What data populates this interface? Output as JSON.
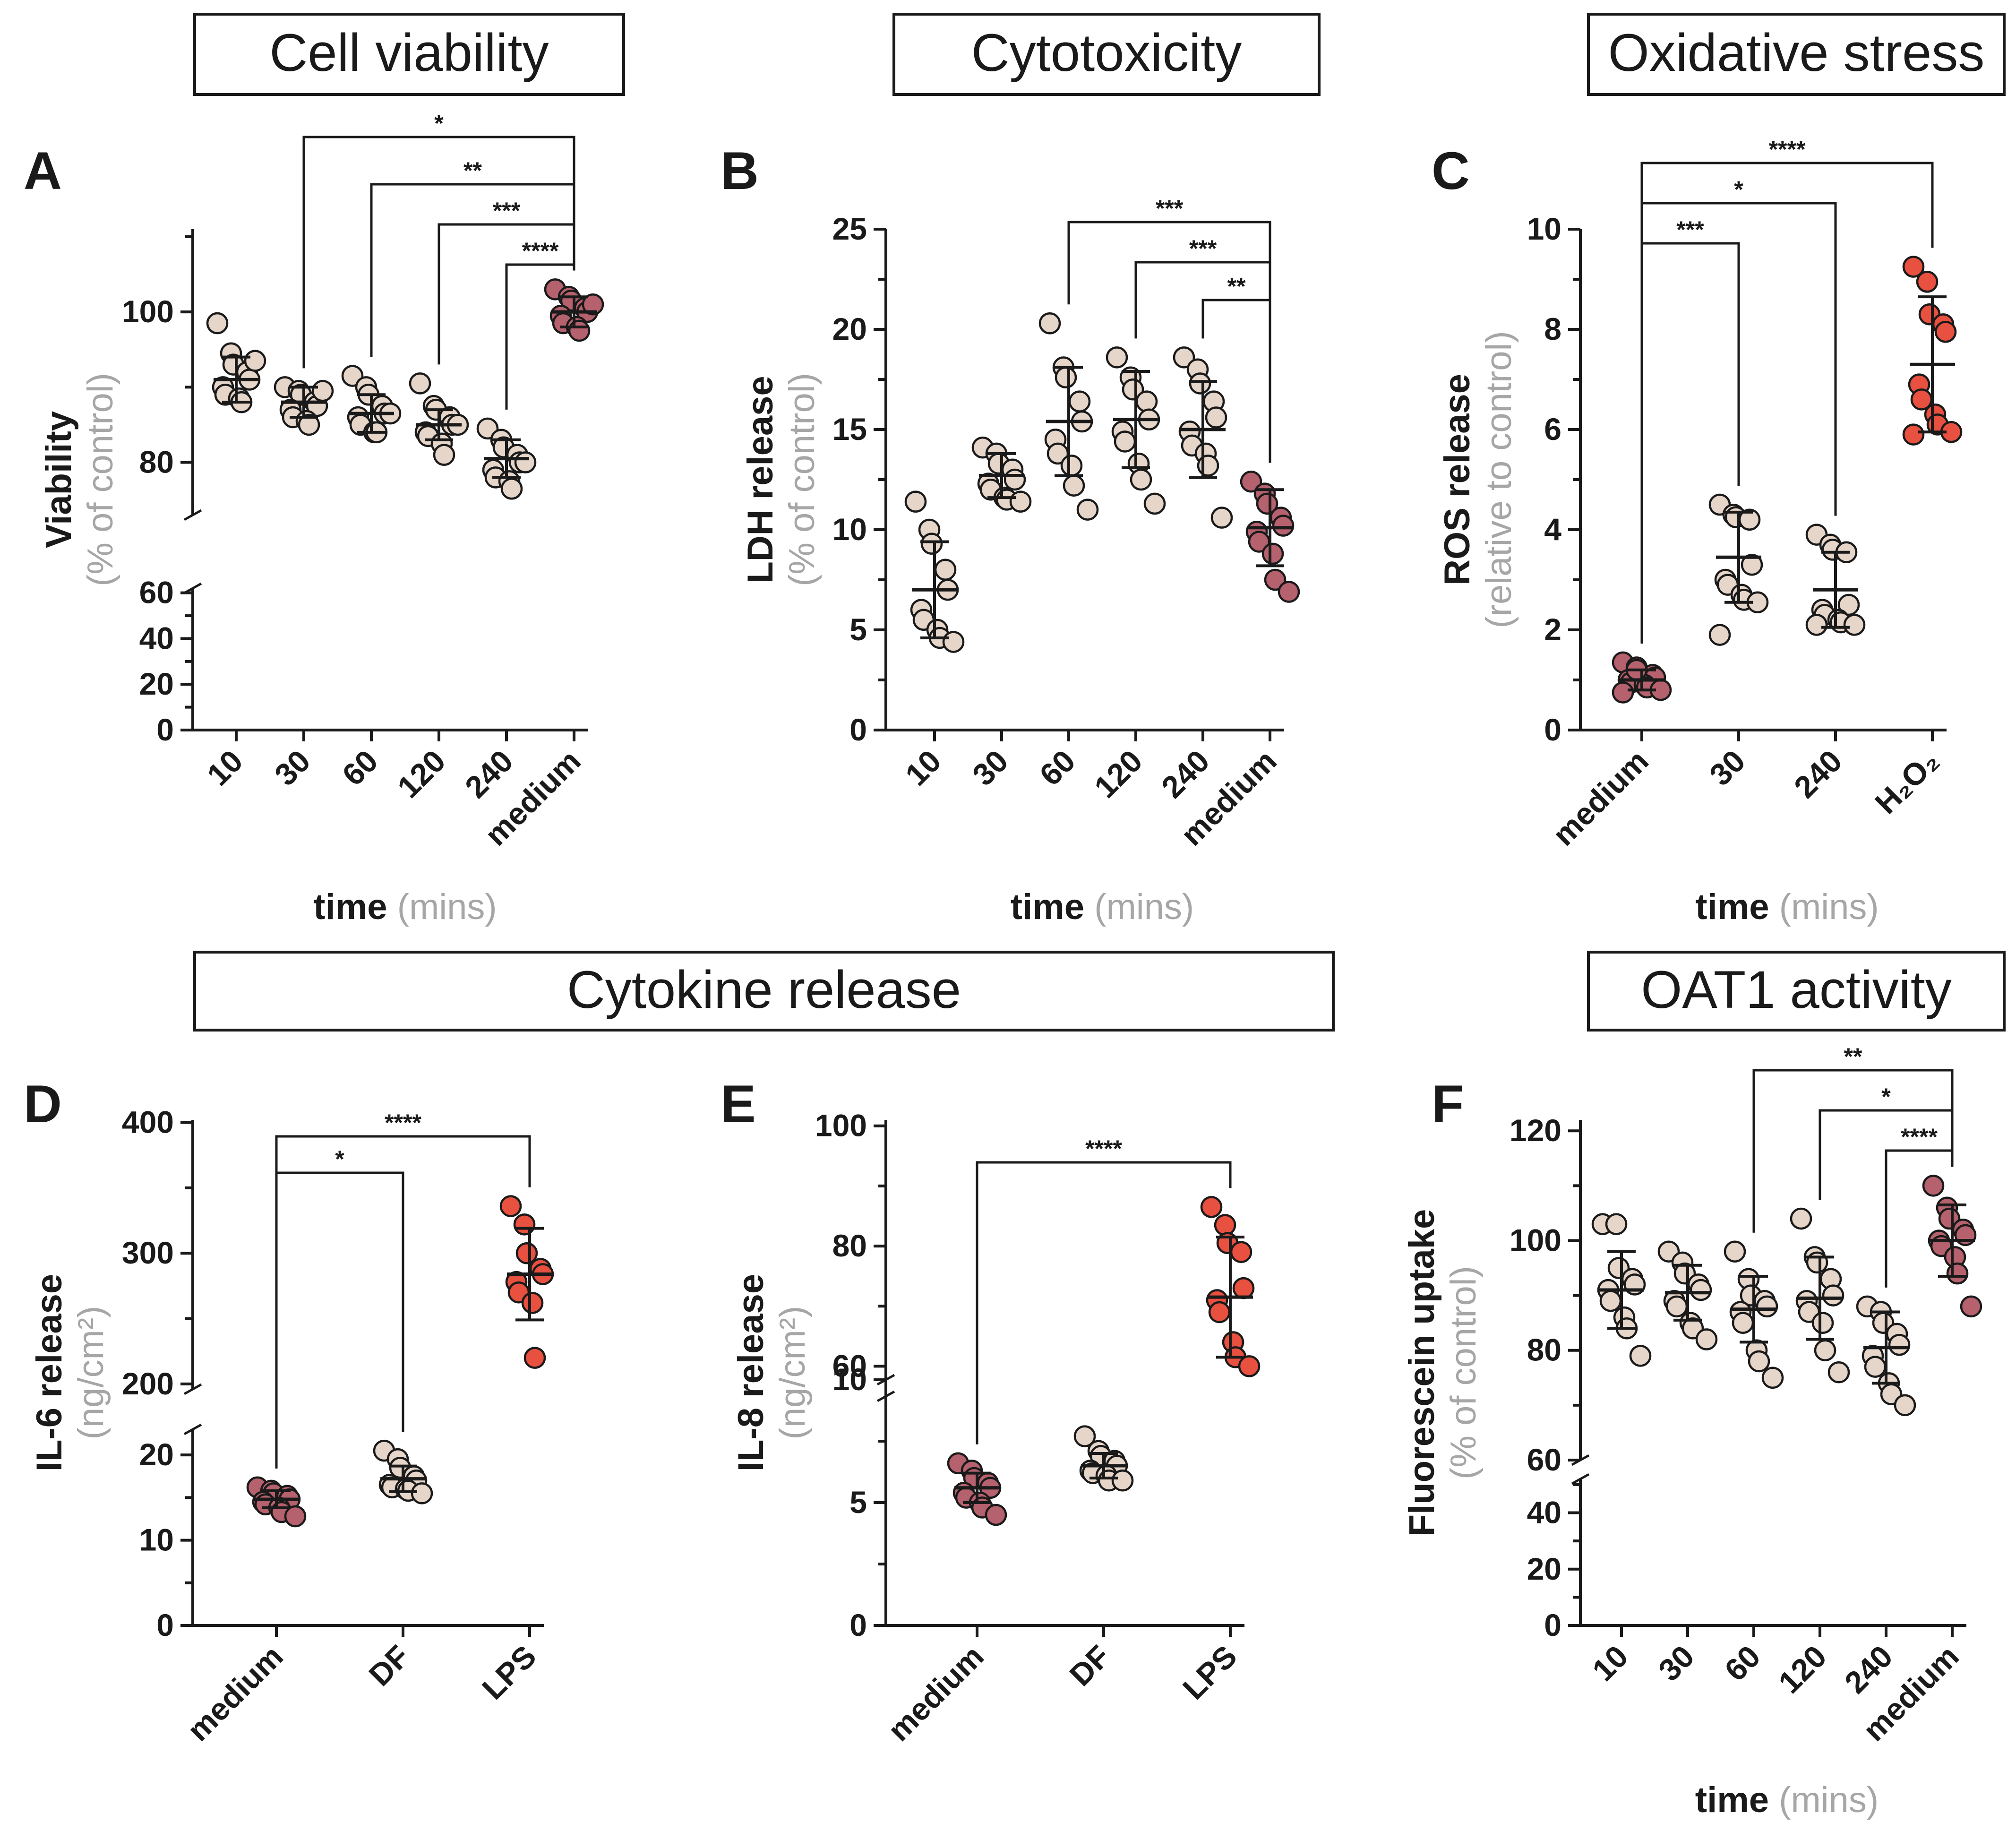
{
  "headers": {
    "cell_viability": "Cell viability",
    "cytotoxicity": "Cytotoxicity",
    "oxidative_stress": "Oxidative stress",
    "cytokine_release": "Cytokine release",
    "oat1_activity": "OAT1 activity"
  },
  "colors": {
    "light": "#e6d5c9",
    "medium": "#b5616e",
    "positive": "#e8503f",
    "axis": "#1a1a1a",
    "gray_text": "#a6a6a6"
  },
  "chart_data": [
    {
      "id": "A",
      "type": "scatter",
      "letter": "A",
      "ylabel_main": "Viability",
      "ylabel_sub": "(% of control)",
      "xlabel_main": "time",
      "xlabel_sub": "(mins)",
      "categories": [
        "10",
        "30",
        "60",
        "120",
        "240",
        "medium"
      ],
      "colors": [
        "light",
        "light",
        "light",
        "light",
        "light",
        "medium"
      ],
      "means": [
        91,
        88,
        86.5,
        85,
        80.5,
        100
      ],
      "sd": [
        3,
        2,
        2.5,
        2,
        2.5,
        2
      ],
      "points": [
        [
          98.5,
          94.5,
          93,
          92,
          91,
          90,
          89,
          88.5,
          88,
          93.5
        ],
        [
          90,
          89.5,
          89,
          88,
          87.5,
          87,
          86,
          85.5,
          85,
          89.5
        ],
        [
          91.5,
          90,
          89,
          87.5,
          86.5,
          86,
          85,
          84,
          84,
          86.5
        ],
        [
          90.5,
          87.5,
          87,
          86,
          85,
          84,
          83.5,
          82.5,
          81,
          85
        ],
        [
          84.5,
          83,
          82,
          81,
          80,
          79,
          78,
          77.5,
          76.5,
          80
        ],
        [
          103,
          102,
          101.5,
          100.5,
          100,
          99.5,
          98.5,
          98,
          97.5,
          101
        ]
      ],
      "y_axis": {
        "upper": {
          "min": 73,
          "max": 111,
          "ticks": [
            80,
            100
          ]
        },
        "lower": {
          "min": 0,
          "max": 62,
          "ticks": [
            0,
            20,
            40,
            60
          ]
        }
      },
      "comparisons": [
        {
          "from": "30",
          "to": "medium",
          "label": "*"
        },
        {
          "from": "60",
          "to": "medium",
          "label": "**"
        },
        {
          "from": "120",
          "to": "medium",
          "label": "***"
        },
        {
          "from": "240",
          "to": "medium",
          "label": "****"
        }
      ]
    },
    {
      "id": "B",
      "type": "scatter",
      "letter": "B",
      "ylabel_main": "LDH release",
      "ylabel_sub": "(% of control)",
      "xlabel_main": "time",
      "xlabel_sub": "(mins)",
      "categories": [
        "10",
        "30",
        "60",
        "120",
        "240",
        "medium"
      ],
      "colors": [
        "light",
        "light",
        "light",
        "light",
        "light",
        "medium"
      ],
      "means": [
        7,
        12.7,
        15.4,
        15.5,
        15,
        10.1
      ],
      "sd": [
        2.4,
        1.1,
        2.7,
        2.4,
        2.4,
        1.9
      ],
      "points": [
        [
          11.4,
          10,
          9.3,
          8,
          7,
          6,
          5.5,
          5,
          4.6,
          4.4
        ],
        [
          14.1,
          13.8,
          13.3,
          13,
          12.5,
          12.3,
          12,
          11.6,
          11.5,
          11.4
        ],
        [
          20.3,
          18.1,
          17.6,
          16.4,
          15.4,
          14.5,
          13.8,
          13.2,
          12.2,
          11
        ],
        [
          18.6,
          17.6,
          17,
          16.4,
          15.5,
          14.9,
          14.4,
          13.3,
          12.5,
          11.3
        ],
        [
          18.6,
          18,
          17.3,
          16.4,
          15.6,
          14.9,
          14.2,
          13.8,
          13.2,
          10.6
        ],
        [
          12.4,
          11.8,
          11.3,
          10.6,
          10.2,
          9.9,
          9.4,
          8.8,
          7.5,
          6.9
        ]
      ],
      "y_axis": {
        "min": 0,
        "max": 25,
        "ticks": [
          0,
          5,
          10,
          15,
          20,
          25
        ]
      },
      "comparisons": [
        {
          "from": "60",
          "to": "medium",
          "label": "***"
        },
        {
          "from": "120",
          "to": "medium",
          "label": "***"
        },
        {
          "from": "240",
          "to": "medium",
          "label": "**"
        }
      ]
    },
    {
      "id": "C",
      "type": "scatter",
      "letter": "C",
      "ylabel_main": "ROS release",
      "ylabel_sub": "(relative to control)",
      "xlabel_main": "time",
      "xlabel_sub": "(mins)",
      "categories": [
        "medium",
        "30",
        "240",
        "H₂O₂"
      ],
      "colors": [
        "medium",
        "light",
        "light",
        "positive"
      ],
      "means": [
        1,
        3.45,
        2.8,
        7.3
      ],
      "sd": [
        0.2,
        0.9,
        0.75,
        1.35
      ],
      "points": [
        [
          1.35,
          1.25,
          1.15,
          1.1,
          1.05,
          1,
          0.95,
          0.9,
          0.85,
          0.8,
          0.75,
          1.2
        ],
        [
          4.5,
          4.3,
          4.25,
          4.2,
          3.3,
          3,
          2.9,
          2.7,
          2.6,
          2.55,
          1.9
        ],
        [
          3.9,
          3.7,
          3.6,
          3.55,
          2.5,
          2.4,
          2.3,
          2.2,
          2.15,
          2.1,
          2.1
        ],
        [
          9.25,
          8.95,
          8.3,
          8.1,
          7.95,
          6.9,
          6.6,
          6.3,
          6.1,
          5.95,
          5.9
        ]
      ],
      "y_axis": {
        "min": 0,
        "max": 10,
        "ticks": [
          0,
          2,
          4,
          6,
          8,
          10
        ]
      },
      "comparisons": [
        {
          "from": "medium",
          "to": "H₂O₂",
          "label": "****"
        },
        {
          "from": "medium",
          "to": "240",
          "label": "*"
        },
        {
          "from": "medium",
          "to": "30",
          "label": "***"
        }
      ]
    },
    {
      "id": "D",
      "type": "scatter",
      "letter": "D",
      "ylabel_main": "IL-6 release",
      "ylabel_sub": "(ng/cm²)",
      "xlabel_main": "",
      "xlabel_sub": "",
      "categories": [
        "medium",
        "DF",
        "LPS"
      ],
      "colors": [
        "medium",
        "light",
        "positive"
      ],
      "means": [
        14.8,
        17.2,
        284
      ],
      "sd": [
        1,
        1.5,
        35
      ],
      "points": [
        [
          16.2,
          15.8,
          15.5,
          15.2,
          14.8,
          14.5,
          14.2,
          13.8,
          13.3,
          12.8
        ],
        [
          20.5,
          19.5,
          18.5,
          17.5,
          17,
          16.5,
          16.2,
          16,
          15.8,
          15.5
        ],
        [
          336,
          322,
          300,
          288,
          284,
          278,
          270,
          262,
          220
        ]
      ],
      "y_axis": {
        "upper": {
          "min": 196,
          "max": 402,
          "ticks": [
            200,
            300,
            400
          ]
        },
        "lower": {
          "min": 0,
          "max": 23,
          "ticks": [
            0,
            10,
            20
          ]
        }
      },
      "comparisons": [
        {
          "from": "medium",
          "to": "LPS",
          "label": "****"
        },
        {
          "from": "medium",
          "to": "DF",
          "label": "*"
        }
      ]
    },
    {
      "id": "E",
      "type": "scatter",
      "letter": "E",
      "ylabel_main": "IL-8 release",
      "ylabel_sub": "(ng/cm²)",
      "xlabel_main": "",
      "xlabel_sub": "",
      "categories": [
        "medium",
        "DF",
        "LPS"
      ],
      "colors": [
        "medium",
        "light",
        "positive"
      ],
      "means": [
        5.6,
        6.5,
        71.5
      ],
      "sd": [
        0.6,
        0.5,
        10
      ],
      "points": [
        [
          6.6,
          6.3,
          6,
          5.8,
          5.6,
          5.4,
          5.2,
          5,
          4.8,
          4.5
        ],
        [
          7.7,
          7.1,
          6.9,
          6.7,
          6.5,
          6.3,
          6.2,
          6.1,
          5.9,
          5.9
        ],
        [
          86.5,
          83.5,
          80.5,
          79,
          73,
          71,
          69,
          64,
          61.5,
          60
        ]
      ],
      "y_axis": {
        "upper": {
          "min": 55,
          "max": 101,
          "ticks": [
            60,
            80,
            100
          ]
        },
        "lower": {
          "min": 0,
          "max": 10,
          "ticks": [
            0,
            5,
            10
          ]
        }
      },
      "comparisons": [
        {
          "from": "medium",
          "to": "LPS",
          "label": "****"
        }
      ]
    },
    {
      "id": "F",
      "type": "scatter",
      "letter": "F",
      "ylabel_main": "Fluorescein uptake",
      "ylabel_sub": "(% of control)",
      "xlabel_main": "time",
      "xlabel_sub": "(mins)",
      "categories": [
        "10",
        "30",
        "60",
        "120",
        "240",
        "medium"
      ],
      "colors": [
        "light",
        "light",
        "light",
        "light",
        "light",
        "medium"
      ],
      "means": [
        91,
        90.5,
        87.5,
        89.5,
        80.5,
        100
      ],
      "sd": [
        7,
        5,
        6,
        7.5,
        6.5,
        6.5
      ],
      "points": [
        [
          103,
          103,
          95,
          93,
          92,
          91,
          89,
          86,
          84,
          79
        ],
        [
          98,
          96,
          94,
          92,
          91,
          89,
          88,
          85,
          84,
          82
        ],
        [
          98,
          93,
          90,
          89,
          88,
          87,
          85,
          80,
          78,
          75
        ],
        [
          104,
          97,
          96,
          93,
          90,
          89,
          87,
          85,
          80,
          76
        ],
        [
          88,
          87,
          85,
          83,
          81,
          79,
          77,
          74,
          72,
          70
        ],
        [
          110,
          106,
          104,
          102,
          101,
          100,
          99,
          97,
          94,
          88
        ]
      ],
      "y_axis": {
        "upper": {
          "min": 60,
          "max": 122,
          "ticks": [
            60,
            80,
            100,
            120
          ]
        },
        "lower": {
          "min": 0,
          "max": 52,
          "ticks": [
            0,
            20,
            40
          ]
        }
      },
      "comparisons": [
        {
          "from": "60",
          "to": "medium",
          "label": "**"
        },
        {
          "from": "120",
          "to": "medium",
          "label": "*"
        },
        {
          "from": "240",
          "to": "medium",
          "label": "****"
        }
      ]
    }
  ]
}
